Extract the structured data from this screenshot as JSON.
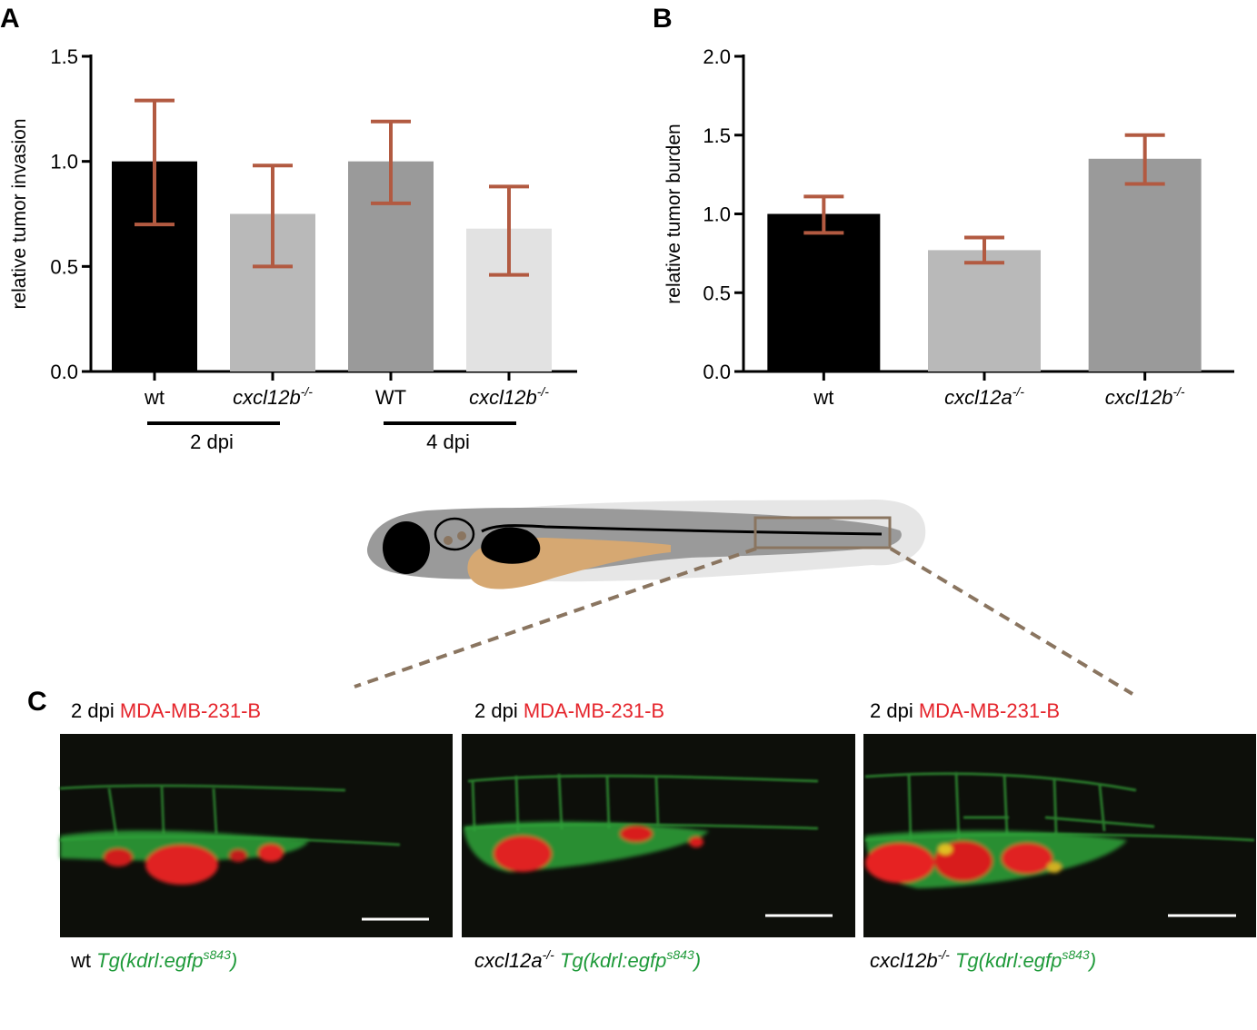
{
  "panels": {
    "A": "A",
    "B": "B",
    "C": "C"
  },
  "chart_data": [
    {
      "panel": "A",
      "type": "bar",
      "ylabel": "relative tumor invasion",
      "ylim": [
        0,
        1.5
      ],
      "ticks": [
        "0.0",
        "0.5",
        "1.0",
        "1.5"
      ],
      "categories": [
        {
          "base": "wt",
          "sup": ""
        },
        {
          "base": "cxcl12b",
          "sup": "-/-"
        },
        {
          "base": "WT",
          "sup": ""
        },
        {
          "base": "cxcl12b",
          "sup": "-/-"
        }
      ],
      "values": [
        1.0,
        0.75,
        1.0,
        0.68
      ],
      "err_low": [
        0.7,
        0.5,
        0.8,
        0.46
      ],
      "err_high": [
        1.29,
        0.98,
        1.19,
        0.88
      ],
      "groups": [
        {
          "label": "2 dpi",
          "members": [
            0,
            1
          ]
        },
        {
          "label": "4 dpi",
          "members": [
            2,
            3
          ]
        }
      ],
      "colors": [
        "#000000",
        "#b9b9b9",
        "#9a9a9a",
        "#e2e2e2"
      ],
      "error_color": "#b25a41"
    },
    {
      "panel": "B",
      "type": "bar",
      "ylabel": "relative tumor burden",
      "ylim": [
        0,
        2.0
      ],
      "ticks": [
        "0.0",
        "0.5",
        "1.0",
        "1.5",
        "2.0"
      ],
      "categories": [
        {
          "base": "wt",
          "sup": ""
        },
        {
          "base": "cxcl12a",
          "sup": "-/-"
        },
        {
          "base": "cxcl12b",
          "sup": "-/-"
        }
      ],
      "values": [
        1.0,
        0.77,
        1.35
      ],
      "err_low": [
        0.88,
        0.69,
        1.19
      ],
      "err_high": [
        1.11,
        0.85,
        1.5
      ],
      "colors": [
        "#000000",
        "#b9b9b9",
        "#9a9a9a"
      ],
      "error_color": "#b25a41"
    }
  ],
  "micrographs": [
    {
      "title_prefix": "2 dpi",
      "title_red": "MDA-MB-231-B",
      "caption_genotype": "wt",
      "caption_genotype_sup": "",
      "caption_tg": "Tg(kdrl:egfp",
      "caption_tg_sup": "s843",
      "caption_tg_end": ")"
    },
    {
      "title_prefix": "2 dpi",
      "title_red": "MDA-MB-231-B",
      "caption_genotype": "cxcl12a",
      "caption_genotype_sup": "-/-",
      "caption_tg": "Tg(kdrl:egfp",
      "caption_tg_sup": "s843",
      "caption_tg_end": ")"
    },
    {
      "title_prefix": "2 dpi",
      "title_red": "MDA-MB-231-B",
      "caption_genotype": "cxcl12b",
      "caption_genotype_sup": "-/-",
      "caption_tg": "Tg(kdrl:egfp",
      "caption_tg_sup": "s843",
      "caption_tg_end": ")"
    }
  ],
  "colors": {
    "red_text": "#e5252c",
    "green_text": "#1f9a3a",
    "box_outline": "#8a7560",
    "yolk": "#d6a872",
    "fish_body": "#9a9a9a",
    "fin": "#e6e6e6"
  }
}
